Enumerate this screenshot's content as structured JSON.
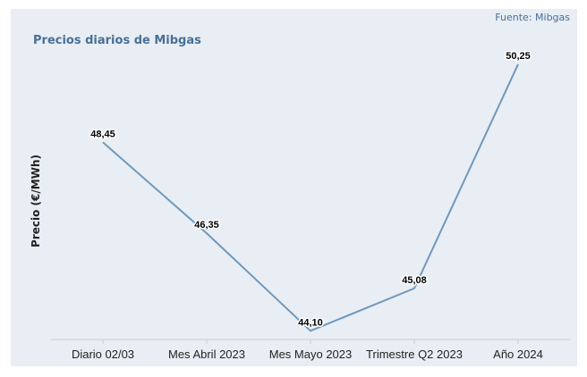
{
  "source_note": "Fuente: Mibgas",
  "chart_data": {
    "type": "line",
    "title": "Precios diarios de Mibgas",
    "ylabel": "Precio (€/MWh)",
    "xlabel": "",
    "categories": [
      "Diario 02/03",
      "Mes Abril 2023",
      "Mes Mayo 2023",
      "Trimestre Q2 2023",
      "Año 2024"
    ],
    "values": [
      48.45,
      46.35,
      44.1,
      45.08,
      50.25
    ],
    "value_labels": [
      "48,45",
      "46,35",
      "44,10",
      "45,08",
      "50,25"
    ],
    "ylim": [
      43.9,
      50.6
    ],
    "grid": false,
    "legend": "none",
    "line_color": "#6f98bd",
    "background_color": "#e8eef4"
  }
}
